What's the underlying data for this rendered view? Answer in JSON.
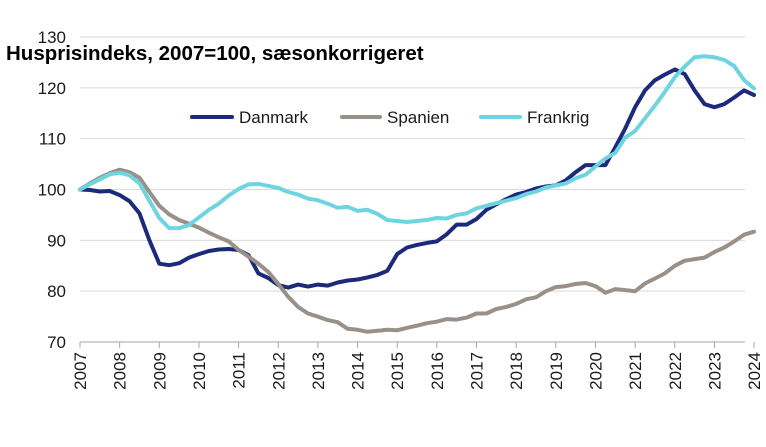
{
  "chart_data": {
    "type": "line",
    "title": "Husprisindeks, 2007=100, sæsonkorrigeret",
    "xlabel": "",
    "ylabel": "",
    "xlim": [
      2007,
      2024.25
    ],
    "ylim": [
      70,
      130
    ],
    "y_ticks": [
      70,
      80,
      90,
      100,
      110,
      120,
      130
    ],
    "x_ticks": [
      2007,
      2008,
      2009,
      2010,
      2011,
      2012,
      2013,
      2014,
      2015,
      2016,
      2017,
      2018,
      2019,
      2020,
      2021,
      2022,
      2023,
      2024
    ],
    "grid": "horizontal",
    "legend_position": "top-center",
    "series": [
      {
        "name": "Danmark",
        "color": "#1b2a7a",
        "x": [
          2007.0,
          2007.25,
          2007.5,
          2007.75,
          2008.0,
          2008.25,
          2008.5,
          2008.75,
          2009.0,
          2009.25,
          2009.5,
          2009.75,
          2010.0,
          2010.25,
          2010.5,
          2010.75,
          2011.0,
          2011.25,
          2011.5,
          2011.75,
          2012.0,
          2012.25,
          2012.5,
          2012.75,
          2013.0,
          2013.25,
          2013.5,
          2013.75,
          2014.0,
          2014.25,
          2014.5,
          2014.75,
          2015.0,
          2015.25,
          2015.5,
          2015.75,
          2016.0,
          2016.25,
          2016.5,
          2016.75,
          2017.0,
          2017.25,
          2017.5,
          2017.75,
          2018.0,
          2018.25,
          2018.5,
          2018.75,
          2019.0,
          2019.25,
          2019.5,
          2019.75,
          2020.0,
          2020.25,
          2020.5,
          2020.75,
          2021.0,
          2021.25,
          2021.5,
          2021.75,
          2022.0,
          2022.25,
          2022.5,
          2022.75,
          2023.0,
          2023.25,
          2023.5,
          2023.75,
          2024.0
        ],
        "values": [
          100,
          99.9,
          99.6,
          99.7,
          98.9,
          97.7,
          95.3,
          90,
          85.4,
          85.1,
          85.5,
          86.6,
          87.3,
          87.9,
          88.2,
          88.3,
          88.1,
          87.1,
          83.5,
          82.6,
          81.2,
          80.7,
          81.3,
          80.9,
          81.3,
          81.1,
          81.7,
          82.1,
          82.3,
          82.7,
          83.2,
          84,
          87.3,
          88.6,
          89.1,
          89.5,
          89.8,
          91.2,
          93.1,
          93.1,
          94.2,
          96,
          97.1,
          98.1,
          99,
          99.5,
          100.2,
          100.6,
          100.8,
          101.8,
          103.4,
          104.8,
          104.8,
          104.8,
          108.3,
          112,
          116.2,
          119.5,
          121.5,
          122.6,
          123.6,
          122.7,
          119.5,
          116.8,
          116.2,
          116.8,
          118.1,
          119.5,
          118.6
        ]
      },
      {
        "name": "Spanien",
        "color": "#999088",
        "x": [
          2007.0,
          2007.25,
          2007.5,
          2007.75,
          2008.0,
          2008.25,
          2008.5,
          2008.75,
          2009.0,
          2009.25,
          2009.5,
          2009.75,
          2010.0,
          2010.25,
          2010.5,
          2010.75,
          2011.0,
          2011.25,
          2011.5,
          2011.75,
          2012.0,
          2012.25,
          2012.5,
          2012.75,
          2013.0,
          2013.25,
          2013.5,
          2013.75,
          2014.0,
          2014.25,
          2014.5,
          2014.75,
          2015.0,
          2015.25,
          2015.5,
          2015.75,
          2016.0,
          2016.25,
          2016.5,
          2016.75,
          2017.0,
          2017.25,
          2017.5,
          2017.75,
          2018.0,
          2018.25,
          2018.5,
          2018.75,
          2019.0,
          2019.25,
          2019.5,
          2019.75,
          2020.0,
          2020.25,
          2020.5,
          2020.75,
          2021.0,
          2021.25,
          2021.5,
          2021.75,
          2022.0,
          2022.25,
          2022.5,
          2022.75,
          2023.0,
          2023.25,
          2023.5,
          2023.75,
          2024.0
        ],
        "values": [
          100,
          101.2,
          102.3,
          103.2,
          103.9,
          103.4,
          102.3,
          99.5,
          96.8,
          95.1,
          94,
          93.3,
          92.5,
          91.5,
          90.6,
          89.8,
          88.1,
          86.8,
          85.4,
          83.8,
          81.4,
          78.9,
          76.9,
          75.6,
          75,
          74.3,
          73.9,
          72.6,
          72.4,
          72,
          72.2,
          72.4,
          72.3,
          72.8,
          73.2,
          73.7,
          74,
          74.5,
          74.4,
          74.8,
          75.6,
          75.6,
          76.5,
          76.9,
          77.5,
          78.4,
          78.8,
          80,
          80.8,
          81,
          81.4,
          81.6,
          81,
          79.7,
          80.4,
          80.2,
          80,
          81.5,
          82.5,
          83.5,
          85,
          86,
          86.3,
          86.6,
          87.7,
          88.6,
          89.8,
          91.1,
          91.7
        ]
      },
      {
        "name": "Frankrig",
        "color": "#6fd4e0",
        "x": [
          2007.0,
          2007.25,
          2007.5,
          2007.75,
          2008.0,
          2008.25,
          2008.5,
          2008.75,
          2009.0,
          2009.25,
          2009.5,
          2009.75,
          2010.0,
          2010.25,
          2010.5,
          2010.75,
          2011.0,
          2011.25,
          2011.5,
          2011.75,
          2012.0,
          2012.25,
          2012.5,
          2012.75,
          2013.0,
          2013.25,
          2013.5,
          2013.75,
          2014.0,
          2014.25,
          2014.5,
          2014.75,
          2015.0,
          2015.25,
          2015.5,
          2015.75,
          2016.0,
          2016.25,
          2016.5,
          2016.75,
          2017.0,
          2017.25,
          2017.5,
          2017.75,
          2018.0,
          2018.25,
          2018.5,
          2018.75,
          2019.0,
          2019.25,
          2019.5,
          2019.75,
          2020.0,
          2020.25,
          2020.5,
          2020.75,
          2021.0,
          2021.25,
          2021.5,
          2021.75,
          2022.0,
          2022.25,
          2022.5,
          2022.75,
          2023.0,
          2023.25,
          2023.5,
          2023.75,
          2024.0
        ],
        "values": [
          100,
          101,
          102,
          103,
          103.3,
          102.8,
          101.2,
          97.8,
          94.4,
          92.4,
          92.4,
          93,
          94.5,
          96,
          97.2,
          98.8,
          100.1,
          101,
          101.1,
          100.7,
          100.3,
          99.5,
          99,
          98.2,
          97.9,
          97.2,
          96.4,
          96.6,
          95.8,
          96,
          95.2,
          94,
          93.8,
          93.6,
          93.8,
          94,
          94.4,
          94.3,
          95,
          95.3,
          96.3,
          96.8,
          97.3,
          97.8,
          98.3,
          99.1,
          99.6,
          100.4,
          100.8,
          101.2,
          102.2,
          102.9,
          104.5,
          106.1,
          107.2,
          110.2,
          111.5,
          114,
          116.5,
          119.2,
          122.1,
          124.2,
          126,
          126.2,
          126,
          125.5,
          124.3,
          121.5,
          119.9
        ]
      }
    ]
  }
}
